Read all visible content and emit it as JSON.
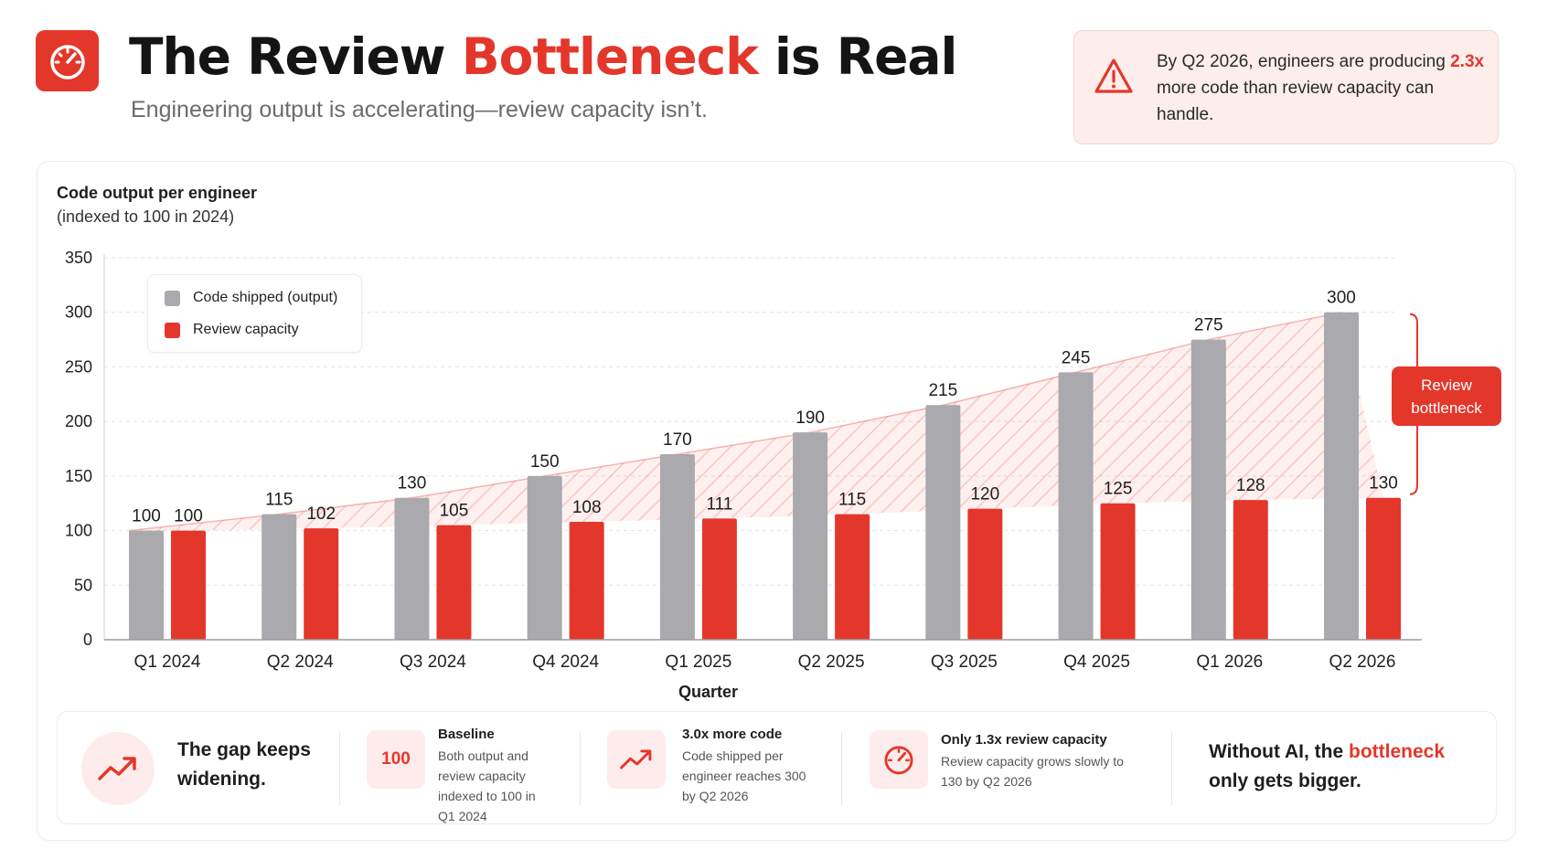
{
  "header": {
    "title_pre": "The Review ",
    "title_accent": "Bottleneck",
    "title_post": " is Real",
    "subtitle": "Engineering output is accelerating—review capacity isn’t.",
    "logo_icon": "speedometer-icon"
  },
  "callout": {
    "icon": "warning-triangle-icon",
    "text_pre": "By Q2 2026, engineers are producing ",
    "highlight": "2.3x",
    "text_post": " more code than review capacity can handle."
  },
  "chart_data": {
    "type": "bar",
    "title": "Code output per engineer",
    "subtitle": "(indexed to 100 in 2024)",
    "xlabel": "Quarter",
    "ylabel": "",
    "categories": [
      "Q1 2024",
      "Q2 2024",
      "Q3 2024",
      "Q4 2024",
      "Q1 2025",
      "Q2 2025",
      "Q3 2025",
      "Q4 2025",
      "Q1 2026",
      "Q2 2026"
    ],
    "series": [
      {
        "name": "Code shipped (output)",
        "color": "#a9a9ae",
        "values": [
          100,
          115,
          130,
          150,
          170,
          190,
          215,
          245,
          275,
          300
        ]
      },
      {
        "name": "Review capacity",
        "color": "#e4372b",
        "values": [
          100,
          102,
          105,
          108,
          111,
          115,
          120,
          125,
          128,
          130
        ]
      }
    ],
    "ylim": [
      0,
      350
    ],
    "yticks": [
      0,
      50,
      100,
      150,
      200,
      250,
      300,
      350
    ],
    "grid": true,
    "legend_position": "top-left",
    "gap_fill": "hatched area between output trend and review capacity",
    "annotation": {
      "text": "Review bottleneck",
      "color": "#e4372b"
    }
  },
  "footer": {
    "gap_icon": "trend-up-icon",
    "gap_text": "The gap keeps widening.",
    "items": [
      {
        "badge": "100",
        "title": "Baseline",
        "body": "Both output and review capacity indexed to 100 in Q1 2024"
      },
      {
        "icon": "trend-up-icon",
        "title": "3.0x more code",
        "body": "Code shipped per engineer reaches 300 by Q2 2026"
      },
      {
        "icon": "gauge-icon",
        "title": "Only 1.3x review capacity",
        "body": "Review capacity grows slowly to 130 by Q2 2026"
      }
    ],
    "final_pre": "Without AI, the ",
    "final_highlight": "bottleneck",
    "final_post": " only gets bigger."
  }
}
